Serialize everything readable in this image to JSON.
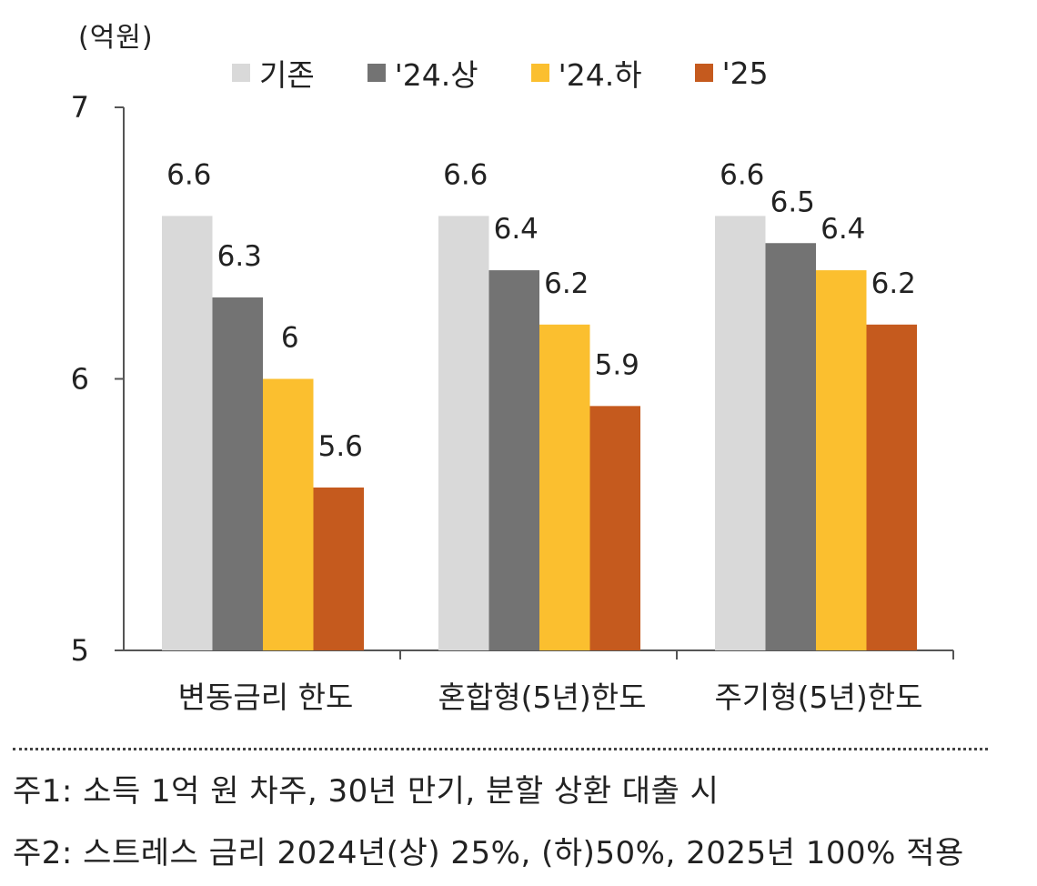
{
  "unit_label": "(억원)",
  "chart_data": {
    "type": "bar",
    "categories": [
      "변동금리 한도",
      "혼합형(5년)한도",
      "주기형(5년)한도"
    ],
    "series": [
      {
        "name": "기존",
        "values": [
          6.6,
          6.6,
          6.6
        ],
        "labels": [
          "6.6",
          "6.6",
          "6.6"
        ],
        "color": "#d9d9d9"
      },
      {
        "name": "'24.상",
        "values": [
          6.3,
          6.4,
          6.5
        ],
        "labels": [
          "6.3",
          "6.4",
          "6.5"
        ],
        "color": "#737373"
      },
      {
        "name": "'24.하",
        "values": [
          6.0,
          6.2,
          6.4
        ],
        "labels": [
          "6",
          "6.2",
          "6.4"
        ],
        "color": "#fbbf2f"
      },
      {
        "name": "'25",
        "values": [
          5.6,
          5.9,
          6.2
        ],
        "labels": [
          "5.6",
          "5.9",
          "6.2"
        ],
        "color": "#c55a1e"
      }
    ],
    "yticks": [
      "5",
      "6",
      "7"
    ],
    "ylim": [
      5,
      7
    ],
    "grid": false,
    "legend_position": "top"
  },
  "notes": [
    "주1: 소득 1억 원 차주, 30년 만기, 분할 상환 대출 시",
    "주2: 스트레스 금리 2024년(상) 25%, (하)50%, 2025년 100% 적용"
  ]
}
